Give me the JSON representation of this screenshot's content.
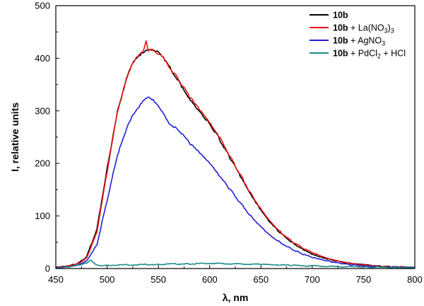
{
  "chart_data": {
    "type": "line",
    "title": "",
    "xlabel": "λ, nm",
    "ylabel": "I, relative units",
    "xlim": [
      450,
      800
    ],
    "ylim": [
      0,
      500
    ],
    "xticks": [
      450,
      500,
      550,
      600,
      650,
      700,
      750,
      800
    ],
    "yticks": [
      0,
      100,
      200,
      300,
      400,
      500
    ],
    "grid": false,
    "legend_position": "top-right",
    "series": [
      {
        "name": "10b",
        "bold": "10b",
        "rest": "",
        "sub": "",
        "tail": "",
        "color": "#000000",
        "x": [
          450,
          460,
          470,
          480,
          490,
          500,
          510,
          520,
          525,
          530,
          535,
          540,
          545,
          550,
          555,
          560,
          570,
          580,
          590,
          600,
          610,
          620,
          630,
          640,
          650,
          660,
          670,
          680,
          690,
          700,
          710,
          720,
          730,
          740,
          750,
          760,
          770,
          780,
          790,
          800
        ],
        "y": [
          2,
          4,
          8,
          22,
          75,
          190,
          300,
          370,
          393,
          405,
          412,
          415,
          413,
          410,
          400,
          385,
          355,
          325,
          300,
          275,
          245,
          210,
          175,
          140,
          110,
          85,
          66,
          50,
          38,
          28,
          21,
          16,
          12,
          9,
          7,
          5,
          4,
          3,
          3,
          2
        ]
      },
      {
        "name": "10b + La(NO3)3",
        "bold": "10b",
        "rest": " + La(NO",
        "sub": "3",
        "tail": ")3",
        "color": "#ee1111",
        "x": [
          450,
          460,
          470,
          480,
          490,
          500,
          510,
          520,
          525,
          530,
          535,
          538,
          540,
          542,
          545,
          550,
          555,
          560,
          570,
          580,
          590,
          600,
          610,
          620,
          630,
          640,
          650,
          660,
          670,
          680,
          690,
          700,
          710,
          720,
          730,
          740,
          750,
          760,
          770,
          780,
          790,
          800
        ],
        "y": [
          2,
          4,
          8,
          20,
          70,
          185,
          298,
          368,
          392,
          404,
          410,
          432,
          412,
          415,
          414,
          411,
          402,
          387,
          358,
          328,
          302,
          277,
          248,
          212,
          178,
          143,
          114,
          88,
          68,
          52,
          40,
          30,
          22,
          16,
          12,
          9,
          7,
          5,
          4,
          3,
          3,
          2
        ]
      },
      {
        "name": "10b + AgNO3",
        "bold": "10b",
        "rest": " + AgNO",
        "sub": "3",
        "tail": "",
        "color": "#1f1fd6",
        "x": [
          450,
          460,
          470,
          480,
          490,
          500,
          510,
          520,
          525,
          530,
          535,
          540,
          545,
          550,
          555,
          560,
          570,
          580,
          590,
          600,
          610,
          620,
          630,
          640,
          650,
          660,
          670,
          680,
          690,
          700,
          710,
          720,
          730,
          740,
          750,
          760,
          770,
          780,
          790,
          800
        ],
        "y": [
          2,
          3,
          6,
          15,
          45,
          130,
          215,
          270,
          290,
          303,
          318,
          325,
          320,
          310,
          297,
          278,
          262,
          240,
          220,
          200,
          175,
          150,
          125,
          100,
          80,
          62,
          48,
          37,
          28,
          21,
          16,
          12,
          9,
          7,
          5,
          4,
          3,
          3,
          2,
          2
        ]
      },
      {
        "name": "10b + PdCl2 + HCl",
        "bold": "10b",
        "rest": " + PdCl",
        "sub": "2",
        "tail": " + HCl",
        "color": "#1a8a8a",
        "x": [
          450,
          460,
          470,
          475,
          480,
          484,
          487,
          490,
          495,
          500,
          520,
          550,
          580,
          600,
          620,
          650,
          680,
          700,
          720,
          750,
          780,
          800
        ],
        "y": [
          1,
          3,
          6,
          8,
          11,
          16,
          10,
          6,
          5,
          6,
          7,
          8,
          9,
          10,
          9,
          8,
          6,
          5,
          4,
          3,
          2,
          2
        ]
      }
    ]
  }
}
